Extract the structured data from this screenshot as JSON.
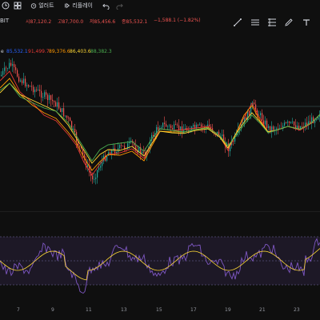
{
  "toolbar": {
    "alert_label": "얼러트",
    "replay_label": "리플레이",
    "undo_icon": "undo-icon",
    "redo_icon": "redo-icon"
  },
  "symbol": {
    "suffix": "BIT"
  },
  "ohlc": {
    "open": "시87,120.2",
    "high": "고87,700.0",
    "low": "저85,456.6",
    "close": "종85,532.1",
    "change": "−1,588.1 (−1.82%)"
  },
  "ma_legend": {
    "label": "e",
    "values": [
      "85,532.1",
      "91,499.7",
      "89,376.6",
      "86,403.6",
      "88,382.3"
    ],
    "colors": [
      "#2962ff",
      "#e53935",
      "#ff9800",
      "#fdd835",
      "#4caf50"
    ]
  },
  "colors": {
    "up": "#26a69a",
    "down": "#ef5350",
    "rsi": "#7e57c2",
    "rsi_ma": "#fdd835"
  },
  "x_axis": {
    "ticks": [
      "7",
      "9",
      "11",
      "13",
      "15",
      "17",
      "19",
      "21",
      "23"
    ]
  }
}
